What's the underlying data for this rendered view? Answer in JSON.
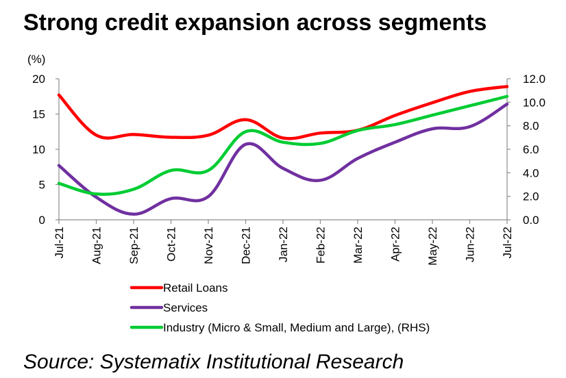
{
  "title": "Strong credit expansion across segments",
  "source": "Source: Systematix Institutional Research",
  "chart_data": {
    "type": "line",
    "title": "Strong credit expansion across segments",
    "ylabel_left": "(%)",
    "ylim_left": [
      0,
      20
    ],
    "yticks_left": [
      "0",
      "5",
      "10",
      "15",
      "20"
    ],
    "ylim_right": [
      0,
      12
    ],
    "yticks_right": [
      "0.0",
      "2.0",
      "4.0",
      "6.0",
      "8.0",
      "10.0",
      "12.0"
    ],
    "categories": [
      "Jul-21",
      "Aug-21",
      "Sep-21",
      "Oct-21",
      "Nov-21",
      "Dec-21",
      "Jan-22",
      "Feb-22",
      "Mar-22",
      "Apr-22",
      "May-22",
      "Jun-22",
      "Jul-22"
    ],
    "legend_position": "bottom",
    "grid": false,
    "series": [
      {
        "name": "Retail Loans",
        "axis": "left",
        "color": "#ff0000",
        "values": [
          17.7,
          12.0,
          12.1,
          11.7,
          12.0,
          14.2,
          11.6,
          12.3,
          12.7,
          14.8,
          16.6,
          18.2,
          18.9
        ]
      },
      {
        "name": "Services",
        "axis": "left",
        "color": "#7030a0",
        "values": [
          7.7,
          3.2,
          0.8,
          3.0,
          3.3,
          10.7,
          7.3,
          5.6,
          8.7,
          11.0,
          12.9,
          13.2,
          16.4
        ]
      },
      {
        "name": "Industry (Micro & Small, Medium and Large), (RHS)",
        "axis": "right",
        "color": "#00cc33",
        "values": [
          3.1,
          2.2,
          2.6,
          4.2,
          4.2,
          7.5,
          6.6,
          6.5,
          7.6,
          8.1,
          8.9,
          9.7,
          10.5
        ]
      }
    ]
  }
}
